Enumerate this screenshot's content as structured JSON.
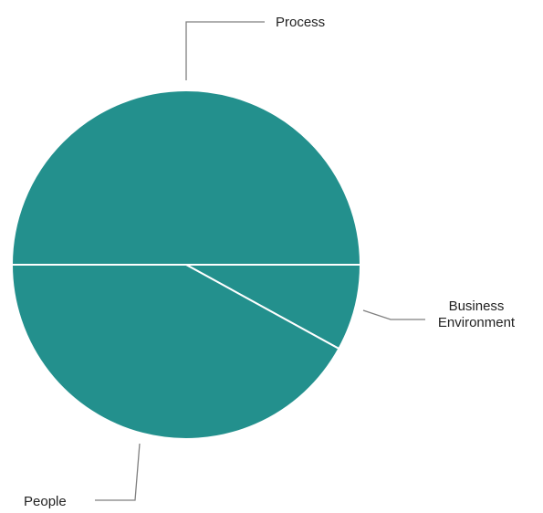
{
  "chart_data": {
    "type": "pie",
    "categories": [
      "Process",
      "Business Environment",
      "People"
    ],
    "values": [
      50,
      8,
      42
    ],
    "unit": "",
    "label_lines": {
      "Process": [
        "Process"
      ],
      "Business Environment": [
        "Business",
        "Environment"
      ],
      "People": [
        "People"
      ]
    },
    "legend": "none (labels with leader lines)",
    "start_angle_deg": 180,
    "direction": "clockwise"
  },
  "colors": {
    "slice": "#23908d",
    "separator": "#ffffff",
    "leader_line": "#7f7f7f",
    "text": "#222222"
  }
}
